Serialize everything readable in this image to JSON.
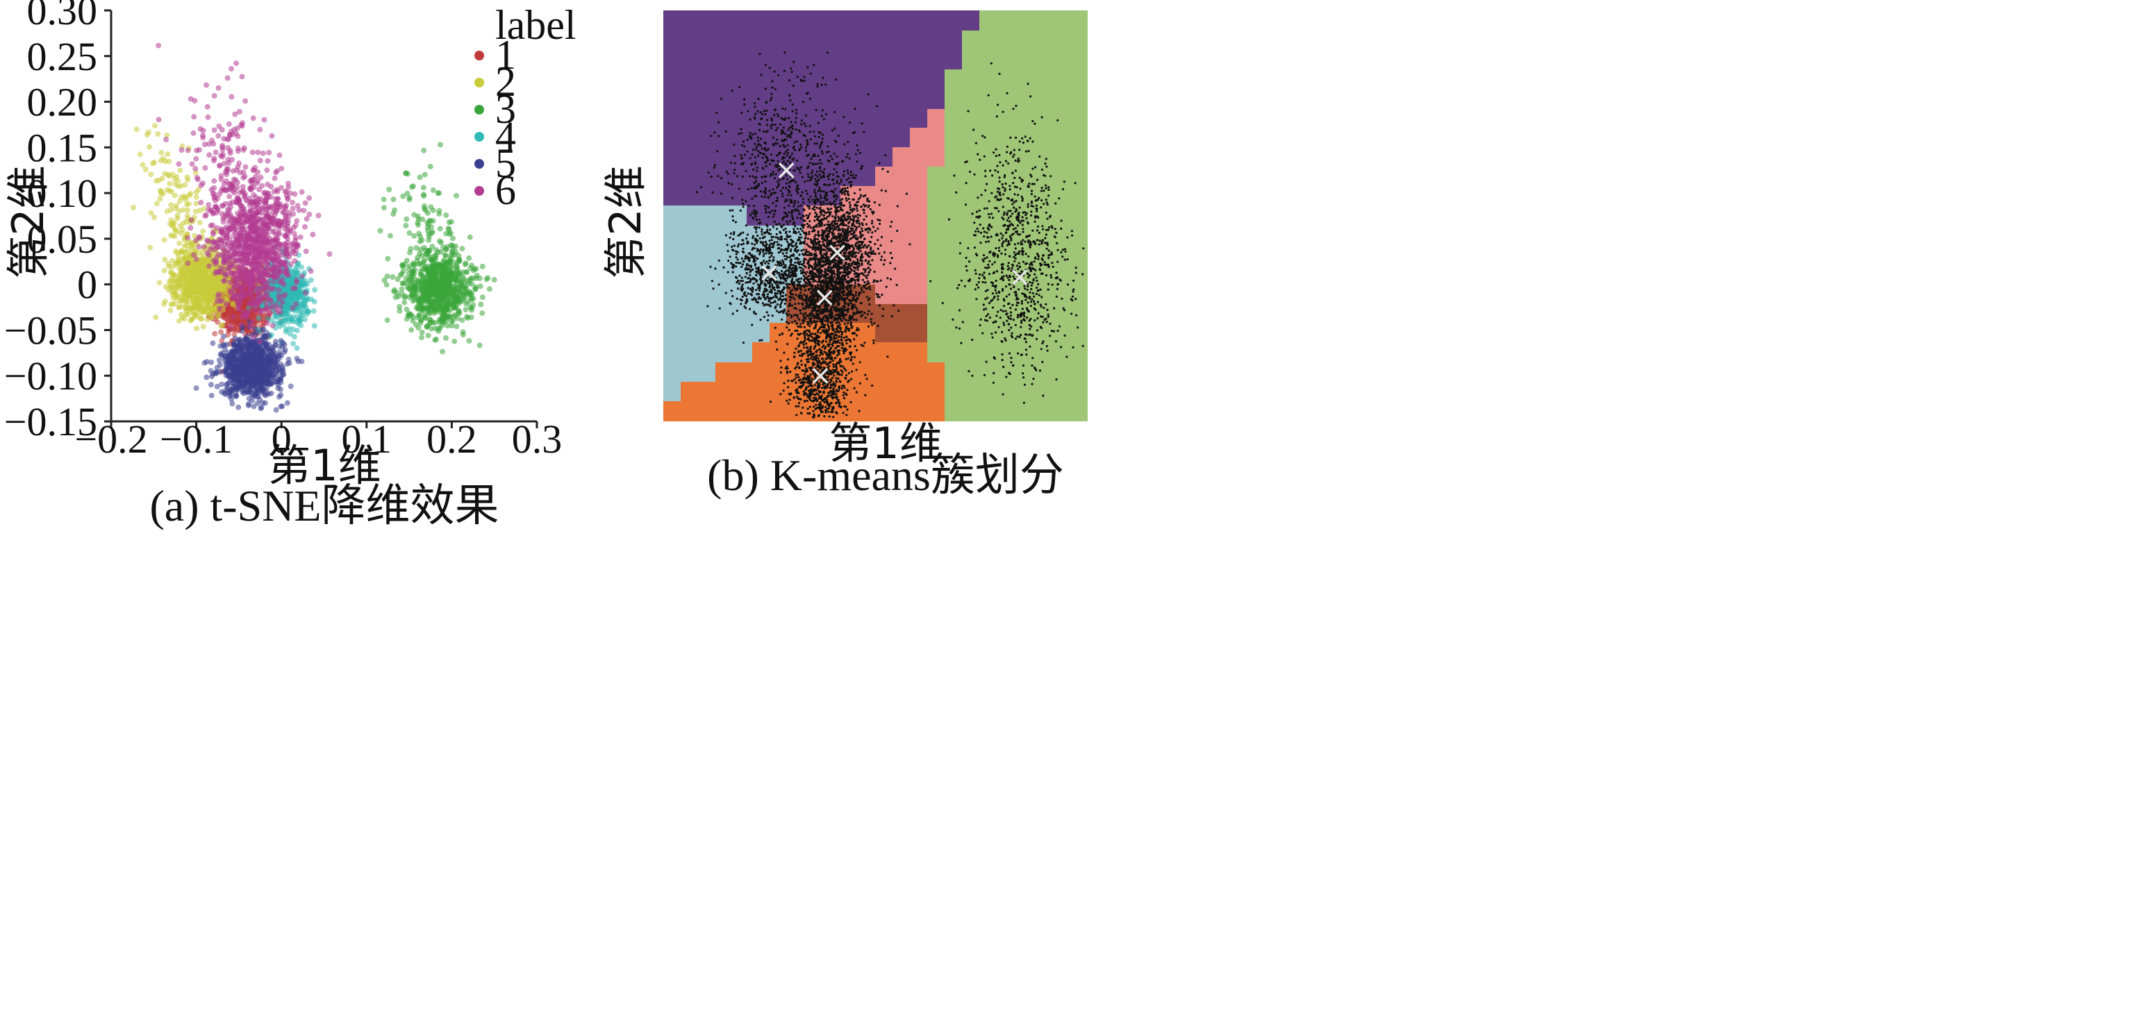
{
  "chart_data": [
    {
      "type": "scatter",
      "caption": "(a) t-SNE降维效果",
      "xlabel": "第1维",
      "ylabel": "第2维",
      "xlim": [
        -0.2,
        0.3
      ],
      "ylim": [
        -0.15,
        0.3
      ],
      "xticks": [
        "−0.2",
        "−0.1",
        "0",
        "0.1",
        "0.2",
        "0.3"
      ],
      "yticks": [
        "−0.15",
        "−0.10",
        "−0.05",
        "0",
        "0.05",
        "0.10",
        "0.15",
        "0.20",
        "0.25",
        "0.30"
      ],
      "legend_title": "label",
      "legend_position": "top-right",
      "grid": false,
      "series": [
        {
          "name": "1",
          "color": "#c0393b",
          "center": [
            -0.045,
            -0.02
          ],
          "spread": [
            0.016,
            0.018
          ],
          "count": 700
        },
        {
          "name": "2",
          "color": "#c9cc3a",
          "center": [
            -0.093,
            0.002
          ],
          "spread": [
            0.017,
            0.018
          ],
          "count": 1000
        },
        {
          "name": "3",
          "color": "#3aa63a",
          "center": [
            0.185,
            -0.005
          ],
          "spread": [
            0.02,
            0.02
          ],
          "count": 900
        },
        {
          "name": "4",
          "color": "#2fb9b5",
          "center": [
            0.005,
            -0.01
          ],
          "spread": [
            0.013,
            0.017
          ],
          "count": 500
        },
        {
          "name": "5",
          "color": "#3b3f8f",
          "center": [
            -0.035,
            -0.09
          ],
          "spread": [
            0.018,
            0.016
          ],
          "count": 900
        },
        {
          "name": "6",
          "color": "#b23c92",
          "center": [
            -0.03,
            0.04
          ],
          "spread": [
            0.025,
            0.035
          ],
          "count": 1200
        }
      ]
    },
    {
      "type": "heatmap",
      "caption": "(b) K-means簇划分",
      "xlabel": "第1维",
      "ylabel": "第2维",
      "regions": [
        {
          "name": "cluster-purple",
          "color": "#633e87"
        },
        {
          "name": "cluster-green",
          "color": "#9fc677"
        },
        {
          "name": "cluster-pink",
          "color": "#e98a89"
        },
        {
          "name": "cluster-lightblue",
          "color": "#9ec7d2"
        },
        {
          "name": "cluster-brown",
          "color": "#a65136"
        },
        {
          "name": "cluster-orange",
          "color": "#ec7634"
        }
      ],
      "centroid_marker": "×",
      "centroids": [
        [
          0.29,
          0.39
        ],
        [
          0.41,
          0.59
        ],
        [
          0.25,
          0.64
        ],
        [
          0.38,
          0.7
        ],
        [
          0.37,
          0.89
        ],
        [
          0.84,
          0.65
        ]
      ],
      "points_color": "#111111"
    }
  ]
}
